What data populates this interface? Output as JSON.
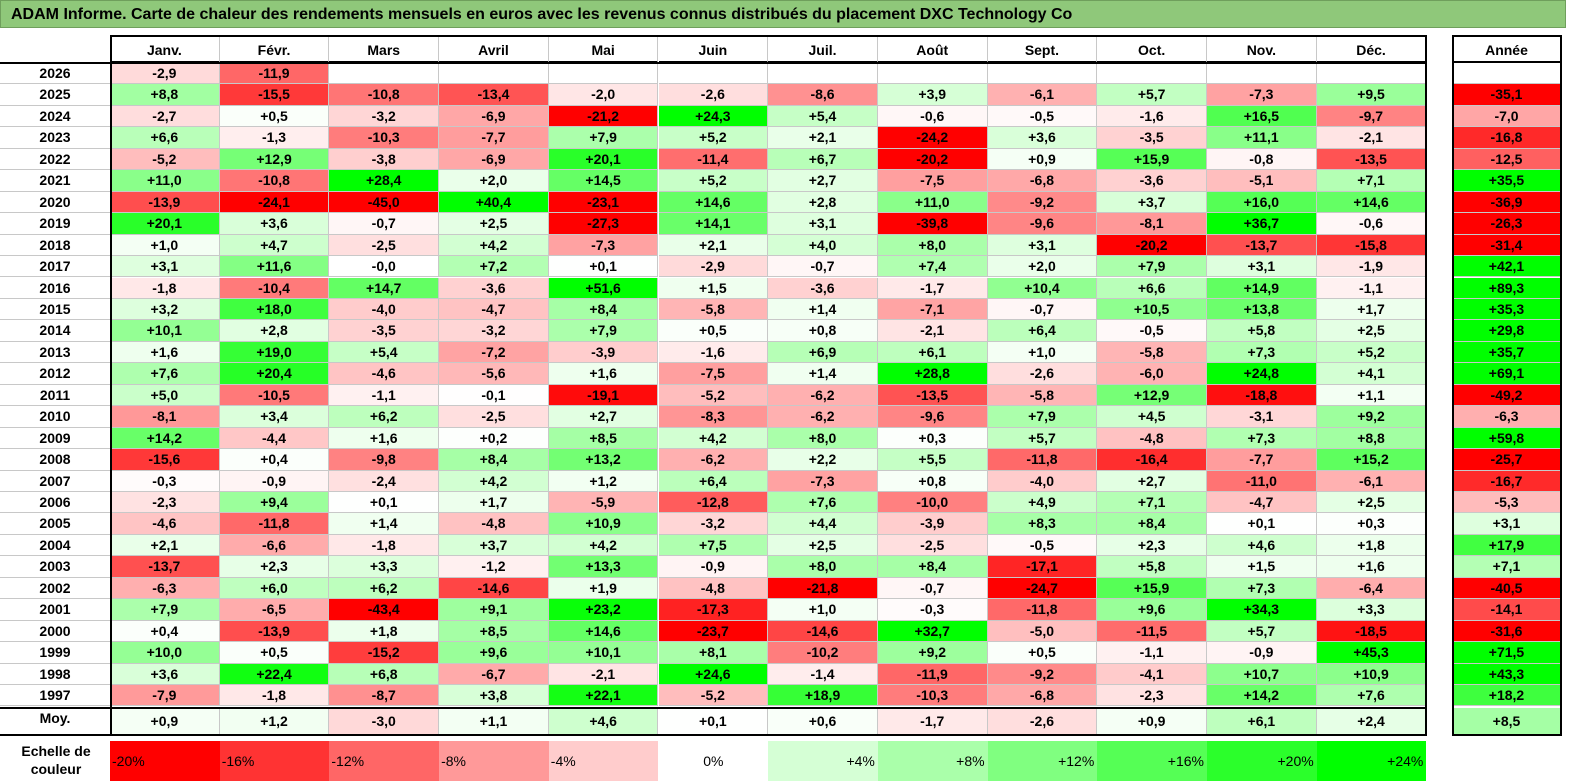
{
  "chart_data": {
    "type": "heatmap",
    "title": "ADAM Informe. Carte de chaleur des rendements mensuels en euros avec les revenus connus distribués du placement DXC Technology Co",
    "months": [
      "Janv.",
      "Févr.",
      "Mars",
      "Avril",
      "Mai",
      "Juin",
      "Juil.",
      "Août",
      "Sept.",
      "Oct.",
      "Nov.",
      "Déc."
    ],
    "year_header": "Année",
    "rows": [
      {
        "year": "2026",
        "values": [
          "-2,9",
          "-11,9",
          null,
          null,
          null,
          null,
          null,
          null,
          null,
          null,
          null,
          null
        ],
        "annual": null
      },
      {
        "year": "2025",
        "values": [
          "+8,8",
          "-15,5",
          "-10,8",
          "-13,4",
          "-2,0",
          "-2,6",
          "-8,6",
          "+3,9",
          "-6,1",
          "+5,7",
          "-7,3",
          "+9,5"
        ],
        "annual": "-35,1"
      },
      {
        "year": "2024",
        "values": [
          "-2,7",
          "+0,5",
          "-3,2",
          "-6,9",
          "-21,2",
          "+24,3",
          "+5,4",
          "-0,6",
          "-0,5",
          "-1,6",
          "+16,5",
          "-9,7"
        ],
        "annual": "-7,0"
      },
      {
        "year": "2023",
        "values": [
          "+6,6",
          "-1,3",
          "-10,3",
          "-7,7",
          "+7,9",
          "+5,2",
          "+2,1",
          "-24,2",
          "+3,6",
          "-3,5",
          "+11,1",
          "-2,1"
        ],
        "annual": "-16,8"
      },
      {
        "year": "2022",
        "values": [
          "-5,2",
          "+12,9",
          "-3,8",
          "-6,9",
          "+20,1",
          "-11,4",
          "+6,7",
          "-20,2",
          "+0,9",
          "+15,9",
          "-0,8",
          "-13,5"
        ],
        "annual": "-12,5"
      },
      {
        "year": "2021",
        "values": [
          "+11,0",
          "-10,8",
          "+28,4",
          "+2,0",
          "+14,5",
          "+5,2",
          "+2,7",
          "-7,5",
          "-6,8",
          "-3,6",
          "-5,1",
          "+7,1"
        ],
        "annual": "+35,5"
      },
      {
        "year": "2020",
        "values": [
          "-13,9",
          "-24,1",
          "-45,0",
          "+40,4",
          "-23,1",
          "+14,6",
          "+2,8",
          "+11,0",
          "-9,2",
          "+3,7",
          "+16,0",
          "+14,6"
        ],
        "annual": "-36,9"
      },
      {
        "year": "2019",
        "values": [
          "+20,1",
          "+3,6",
          "-0,7",
          "+2,5",
          "-27,3",
          "+14,1",
          "+3,1",
          "-39,8",
          "-9,6",
          "-8,1",
          "+36,7",
          "-0,6"
        ],
        "annual": "-26,3"
      },
      {
        "year": "2018",
        "values": [
          "+1,0",
          "+4,7",
          "-2,5",
          "+4,2",
          "-7,3",
          "+2,1",
          "+4,0",
          "+8,0",
          "+3,1",
          "-20,2",
          "-13,7",
          "-15,8"
        ],
        "annual": "-31,4"
      },
      {
        "year": "2017",
        "values": [
          "+3,1",
          "+11,6",
          "-0,0",
          "+7,2",
          "+0,1",
          "-2,9",
          "-0,7",
          "+7,4",
          "+2,0",
          "+7,9",
          "+3,1",
          "-1,9"
        ],
        "annual": "+42,1"
      },
      {
        "year": "2016",
        "values": [
          "-1,8",
          "-10,4",
          "+14,7",
          "-3,6",
          "+51,6",
          "+1,5",
          "-3,6",
          "-1,7",
          "+10,4",
          "+6,6",
          "+14,9",
          "-1,1"
        ],
        "annual": "+89,3"
      },
      {
        "year": "2015",
        "values": [
          "+3,2",
          "+18,0",
          "-4,0",
          "-4,7",
          "+8,4",
          "-5,8",
          "+1,4",
          "-7,1",
          "-0,7",
          "+10,5",
          "+13,8",
          "+1,7"
        ],
        "annual": "+35,3"
      },
      {
        "year": "2014",
        "values": [
          "+10,1",
          "+2,8",
          "-3,5",
          "-3,2",
          "+7,9",
          "+0,5",
          "+0,8",
          "-2,1",
          "+6,4",
          "-0,5",
          "+5,8",
          "+2,5"
        ],
        "annual": "+29,8"
      },
      {
        "year": "2013",
        "values": [
          "+1,6",
          "+19,0",
          "+5,4",
          "-7,2",
          "-3,9",
          "-1,6",
          "+6,9",
          "+6,1",
          "+1,0",
          "-5,8",
          "+7,3",
          "+5,2"
        ],
        "annual": "+35,7"
      },
      {
        "year": "2012",
        "values": [
          "+7,6",
          "+20,4",
          "-4,6",
          "-5,6",
          "+1,6",
          "-7,5",
          "+1,4",
          "+28,8",
          "-2,6",
          "-6,0",
          "+24,8",
          "+4,1"
        ],
        "annual": "+69,1"
      },
      {
        "year": "2011",
        "values": [
          "+5,0",
          "-10,5",
          "-1,1",
          "-0,1",
          "-19,1",
          "-5,2",
          "-6,2",
          "-13,5",
          "-5,8",
          "+12,9",
          "-18,8",
          "+1,1"
        ],
        "annual": "-49,2"
      },
      {
        "year": "2010",
        "values": [
          "-8,1",
          "+3,4",
          "+6,2",
          "-2,5",
          "+2,7",
          "-8,3",
          "-6,2",
          "-9,6",
          "+7,9",
          "+4,5",
          "-3,1",
          "+9,2"
        ],
        "annual": "-6,3"
      },
      {
        "year": "2009",
        "values": [
          "+14,2",
          "-4,4",
          "+1,6",
          "+0,2",
          "+8,5",
          "+4,2",
          "+8,0",
          "+0,3",
          "+5,7",
          "-4,8",
          "+7,3",
          "+8,8"
        ],
        "annual": "+59,8"
      },
      {
        "year": "2008",
        "values": [
          "-15,6",
          "+0,4",
          "-9,8",
          "+8,4",
          "+13,2",
          "-6,2",
          "+2,2",
          "+5,5",
          "-11,8",
          "-16,4",
          "-7,7",
          "+15,2"
        ],
        "annual": "-25,7"
      },
      {
        "year": "2007",
        "values": [
          "-0,3",
          "-0,9",
          "-2,4",
          "+4,2",
          "+1,2",
          "+6,4",
          "-7,3",
          "+0,8",
          "-4,0",
          "+2,7",
          "-11,0",
          "-6,1"
        ],
        "annual": "-16,7"
      },
      {
        "year": "2006",
        "values": [
          "-2,3",
          "+9,4",
          "+0,1",
          "+1,7",
          "-5,9",
          "-12,8",
          "+7,6",
          "-10,0",
          "+4,9",
          "+7,1",
          "-4,7",
          "+2,5"
        ],
        "annual": "-5,3"
      },
      {
        "year": "2005",
        "values": [
          "-4,6",
          "-11,8",
          "+1,4",
          "-4,8",
          "+10,9",
          "-3,2",
          "+4,4",
          "-3,9",
          "+8,3",
          "+8,4",
          "+0,1",
          "+0,3"
        ],
        "annual": "+3,1"
      },
      {
        "year": "2004",
        "values": [
          "+2,1",
          "-6,6",
          "-1,8",
          "+3,7",
          "+4,2",
          "+7,5",
          "+2,5",
          "-2,5",
          "-0,5",
          "+2,3",
          "+4,6",
          "+1,8"
        ],
        "annual": "+17,9"
      },
      {
        "year": "2003",
        "values": [
          "-13,7",
          "+2,3",
          "+3,3",
          "-1,2",
          "+13,3",
          "-0,9",
          "+8,0",
          "+8,4",
          "-17,1",
          "+5,8",
          "+1,5",
          "+1,6"
        ],
        "annual": "+7,1"
      },
      {
        "year": "2002",
        "values": [
          "-6,3",
          "+6,0",
          "+6,2",
          "-14,6",
          "+1,9",
          "-4,8",
          "-21,8",
          "-0,7",
          "-24,7",
          "+15,9",
          "+7,3",
          "-6,4"
        ],
        "annual": "-40,5"
      },
      {
        "year": "2001",
        "values": [
          "+7,9",
          "-6,5",
          "-43,4",
          "+9,1",
          "+23,2",
          "-17,3",
          "+1,0",
          "-0,3",
          "-11,8",
          "+9,6",
          "+34,3",
          "+3,3"
        ],
        "annual": "-14,1"
      },
      {
        "year": "2000",
        "values": [
          "+0,4",
          "-13,9",
          "+1,8",
          "+8,5",
          "+14,6",
          "-23,7",
          "-14,6",
          "+32,7",
          "-5,0",
          "-11,5",
          "+5,7",
          "-18,5"
        ],
        "annual": "-31,6"
      },
      {
        "year": "1999",
        "values": [
          "+10,0",
          "+0,5",
          "-15,2",
          "+9,6",
          "+10,1",
          "+8,1",
          "-10,2",
          "+9,2",
          "+0,5",
          "-1,1",
          "-0,9",
          "+45,3"
        ],
        "annual": "+71,5"
      },
      {
        "year": "1998",
        "values": [
          "+3,6",
          "+22,4",
          "+6,8",
          "-6,7",
          "-2,1",
          "+24,6",
          "-1,4",
          "-11,9",
          "-9,2",
          "-4,1",
          "+10,7",
          "+10,9"
        ],
        "annual": "+43,3"
      },
      {
        "year": "1997",
        "values": [
          "-7,9",
          "-1,8",
          "-8,7",
          "+3,8",
          "+22,1",
          "-5,2",
          "+18,9",
          "-10,3",
          "-6,8",
          "-2,3",
          "+14,2",
          "+7,6"
        ],
        "annual": "+18,2"
      }
    ],
    "average": {
      "label": "Moy.",
      "values": [
        "+0,9",
        "+1,2",
        "-3,0",
        "+1,1",
        "+4,6",
        "+0,1",
        "+0,6",
        "-1,7",
        "-2,6",
        "+0,9",
        "+6,1",
        "+2,4"
      ],
      "annual": "+8,5"
    },
    "color_scale": {
      "label": "Echelle de couleur",
      "stops": [
        "-20%",
        "-16%",
        "-12%",
        "-8%",
        "-4%",
        "0%",
        "+4%",
        "+8%",
        "+12%",
        "+16%",
        "+20%",
        "+24%"
      ],
      "neg_color": "#ff0000",
      "pos_color": "#00ff00"
    }
  }
}
